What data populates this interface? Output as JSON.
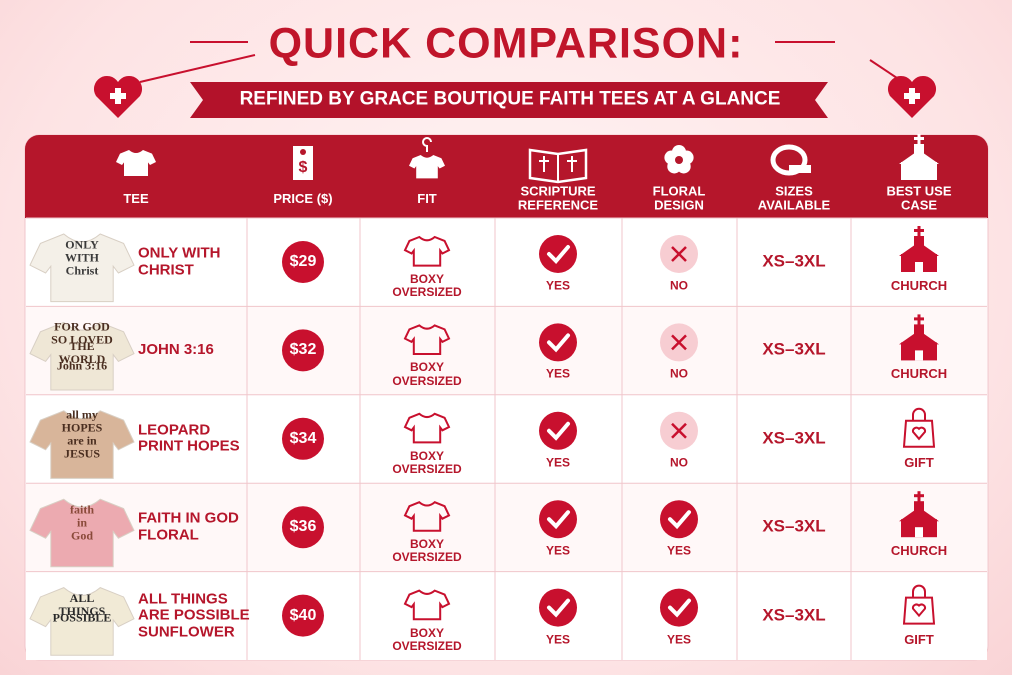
{
  "header": {
    "title": "QUICK COMPARISON:",
    "subtitle": "REFINED BY GRACE BOUTIQUE FAITH TEES AT A GLANCE"
  },
  "table": {
    "columns": [
      "TEE",
      "PRICE ($)",
      "FIT",
      "SCRIPTURE REFERENCE",
      "FLORAL DESIGN",
      "SIZES AVAILABLE",
      "BEST USE CASE"
    ],
    "rows": [
      {
        "shirt_print": [
          "ONLY",
          "WITH",
          "Christ"
        ],
        "tee": "ONLY WITH CHRIST",
        "price": "$29",
        "fit": "BOXY OVERSIZED",
        "scripture": "YES",
        "floral": "NO",
        "sizes": "XS–3XL",
        "use": "CHURCH"
      },
      {
        "shirt_print": [
          "FOR GOD",
          "SO LOVED",
          "THE WORLD",
          "John 3:16"
        ],
        "tee": "JOHN 3:16",
        "price": "$32",
        "fit": "BOXY OVERSIZED",
        "scripture": "YES",
        "floral": "NO",
        "sizes": "XS–3XL",
        "use": "CHURCH"
      },
      {
        "shirt_print": [
          "all my",
          "HOPES",
          "are in",
          "JESUS"
        ],
        "tee": "LEOPARD PRINT HOPES",
        "price": "$34",
        "fit": "BOXY OVERSIZED",
        "scripture": "YES",
        "floral": "NO",
        "sizes": "XS–3XL",
        "use": "GIFT"
      },
      {
        "shirt_print": [
          "faith",
          "in",
          "God"
        ],
        "tee": "FAITH IN GOD FLORAL",
        "price": "$36",
        "fit": "BOXY OVERSIZED",
        "scripture": "YES",
        "floral": "YES",
        "sizes": "XS–3XL",
        "use": "CHURCH"
      },
      {
        "shirt_print": [
          "ALL THINGS",
          "POSSIBLE"
        ],
        "tee": "ALL THINGS ARE POSSIBLE SUNFLOWER",
        "price": "$40",
        "fit": "BOXY OVERSIZED",
        "scripture": "YES",
        "floral": "YES",
        "sizes": "XS–3XL",
        "use": "GIFT"
      }
    ]
  }
}
